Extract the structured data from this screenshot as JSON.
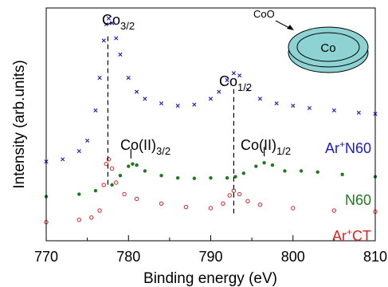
{
  "chart_data": {
    "type": "scatter",
    "xlabel": "Binding energy (eV)",
    "ylabel": "Intensity (arb.units)",
    "xlim": [
      770,
      810
    ],
    "x_reversed": false,
    "xticks": [
      770,
      780,
      790,
      800,
      810
    ],
    "y_tick_labels": false,
    "grid": false,
    "series": [
      {
        "name": "Ar⁺N60",
        "color": "#1a1acc",
        "marker": "x",
        "points": [
          [
            770,
            0.34
          ],
          [
            772,
            0.35
          ],
          [
            774,
            0.385
          ],
          [
            775,
            0.43
          ],
          [
            776,
            0.56
          ],
          [
            776.5,
            0.7
          ],
          [
            777,
            0.86
          ],
          [
            777.3,
            0.93
          ],
          [
            777.6,
            0.955
          ],
          [
            778,
            0.935
          ],
          [
            778.5,
            0.87
          ],
          [
            779,
            0.8
          ],
          [
            780,
            0.7
          ],
          [
            781,
            0.64
          ],
          [
            782,
            0.61
          ],
          [
            784,
            0.59
          ],
          [
            786,
            0.58
          ],
          [
            788,
            0.585
          ],
          [
            790,
            0.61
          ],
          [
            791,
            0.64
          ],
          [
            792,
            0.69
          ],
          [
            792.8,
            0.72
          ],
          [
            793.5,
            0.71
          ],
          [
            794.5,
            0.65
          ],
          [
            796,
            0.61
          ],
          [
            798,
            0.59
          ],
          [
            800,
            0.58
          ],
          [
            802,
            0.57
          ],
          [
            805,
            0.56
          ],
          [
            808,
            0.55
          ],
          [
            810,
            0.545
          ]
        ]
      },
      {
        "name": "N60",
        "color": "#1f7a1f",
        "marker": "filled-circle",
        "points": [
          [
            770,
            0.19
          ],
          [
            774,
            0.2
          ],
          [
            776,
            0.215
          ],
          [
            778,
            0.24
          ],
          [
            779,
            0.28
          ],
          [
            780,
            0.32
          ],
          [
            780.5,
            0.33
          ],
          [
            781,
            0.325
          ],
          [
            782,
            0.3
          ],
          [
            784,
            0.28
          ],
          [
            786,
            0.27
          ],
          [
            788,
            0.268
          ],
          [
            790,
            0.27
          ],
          [
            792,
            0.27
          ],
          [
            793,
            0.275
          ],
          [
            794,
            0.29
          ],
          [
            795.5,
            0.32
          ],
          [
            796.5,
            0.335
          ],
          [
            797.5,
            0.325
          ],
          [
            799,
            0.3
          ],
          [
            801,
            0.3
          ],
          [
            803,
            0.295
          ],
          [
            806,
            0.285
          ],
          [
            810,
            0.275
          ]
        ]
      },
      {
        "name": "Ar⁺CT",
        "color": "#e02020",
        "marker": "open-circle",
        "points": [
          [
            770,
            0.08
          ],
          [
            774,
            0.09
          ],
          [
            775.5,
            0.1
          ],
          [
            776.5,
            0.13
          ],
          [
            777,
            0.24
          ],
          [
            777.3,
            0.33
          ],
          [
            777.6,
            0.35
          ],
          [
            778,
            0.31
          ],
          [
            778.5,
            0.25
          ],
          [
            779.5,
            0.2
          ],
          [
            781,
            0.18
          ],
          [
            784,
            0.16
          ],
          [
            787,
            0.145
          ],
          [
            790,
            0.14
          ],
          [
            791.5,
            0.16
          ],
          [
            792.3,
            0.195
          ],
          [
            792.8,
            0.215
          ],
          [
            793.5,
            0.2
          ],
          [
            794.5,
            0.17
          ],
          [
            796,
            0.155
          ],
          [
            800,
            0.14
          ],
          [
            805,
            0.13
          ],
          [
            810,
            0.125
          ]
        ]
      }
    ],
    "peak_labels": [
      {
        "text": "Co",
        "sub": "3/2",
        "x": 777.5
      },
      {
        "text": "Co",
        "sub": "1/2",
        "x": 792.8
      },
      {
        "text": "Co(II)",
        "sub": "3/2",
        "x": 780.3
      },
      {
        "text": "Co(II)",
        "sub": "1/2",
        "x": 796.5
      }
    ],
    "series_labels": [
      {
        "prefix": "Ar",
        "sup": "+",
        "suffix": "N60",
        "color": "#1a1acc"
      },
      {
        "prefix": "",
        "sup": "",
        "suffix": "N60",
        "color": "#1f7a1f"
      },
      {
        "prefix": "Ar",
        "sup": "+",
        "suffix": "CT",
        "color": "#e02020"
      }
    ],
    "inset": {
      "outer_label": "CoO",
      "inner_label": "Co",
      "fill": "#8ed3d3"
    }
  }
}
